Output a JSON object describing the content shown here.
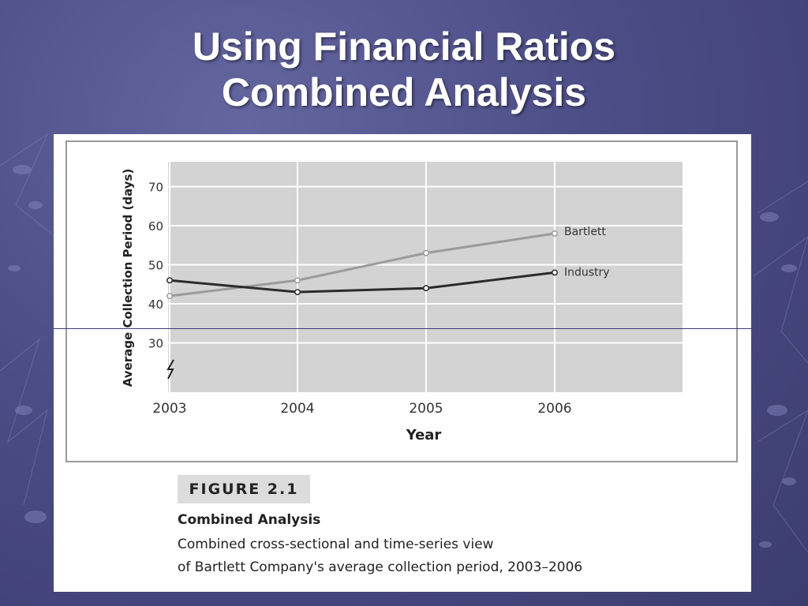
{
  "slide": {
    "title_line1": "Using Financial Ratios",
    "title_line2": "Combined Analysis"
  },
  "figure": {
    "label": "FIGURE 2.1",
    "caption_title": "Combined Analysis",
    "caption_line1": "Combined cross-sectional and time-series view",
    "caption_line2": "of Bartlett Company's average collection period, 2003–2006"
  },
  "colors": {
    "background": "#4c4d86",
    "plot_area": "#d3d3d3",
    "bartlett_line": "#9b9b9b",
    "industry_line": "#2b2b2b"
  },
  "chart_data": {
    "type": "line",
    "x": [
      "2003",
      "2004",
      "2005",
      "2006"
    ],
    "series": [
      {
        "name": "Bartlett",
        "values": [
          42,
          46,
          53,
          58
        ]
      },
      {
        "name": "Industry",
        "values": [
          46,
          43,
          44,
          48
        ]
      }
    ],
    "ylabel": "Average Collection Period (days)",
    "xlabel": "Year",
    "yticks": [
      30,
      40,
      50,
      60,
      70
    ],
    "ylim": [
      30,
      75
    ],
    "axis_break": true,
    "grid": true,
    "legend": "inline labels at line ends"
  }
}
